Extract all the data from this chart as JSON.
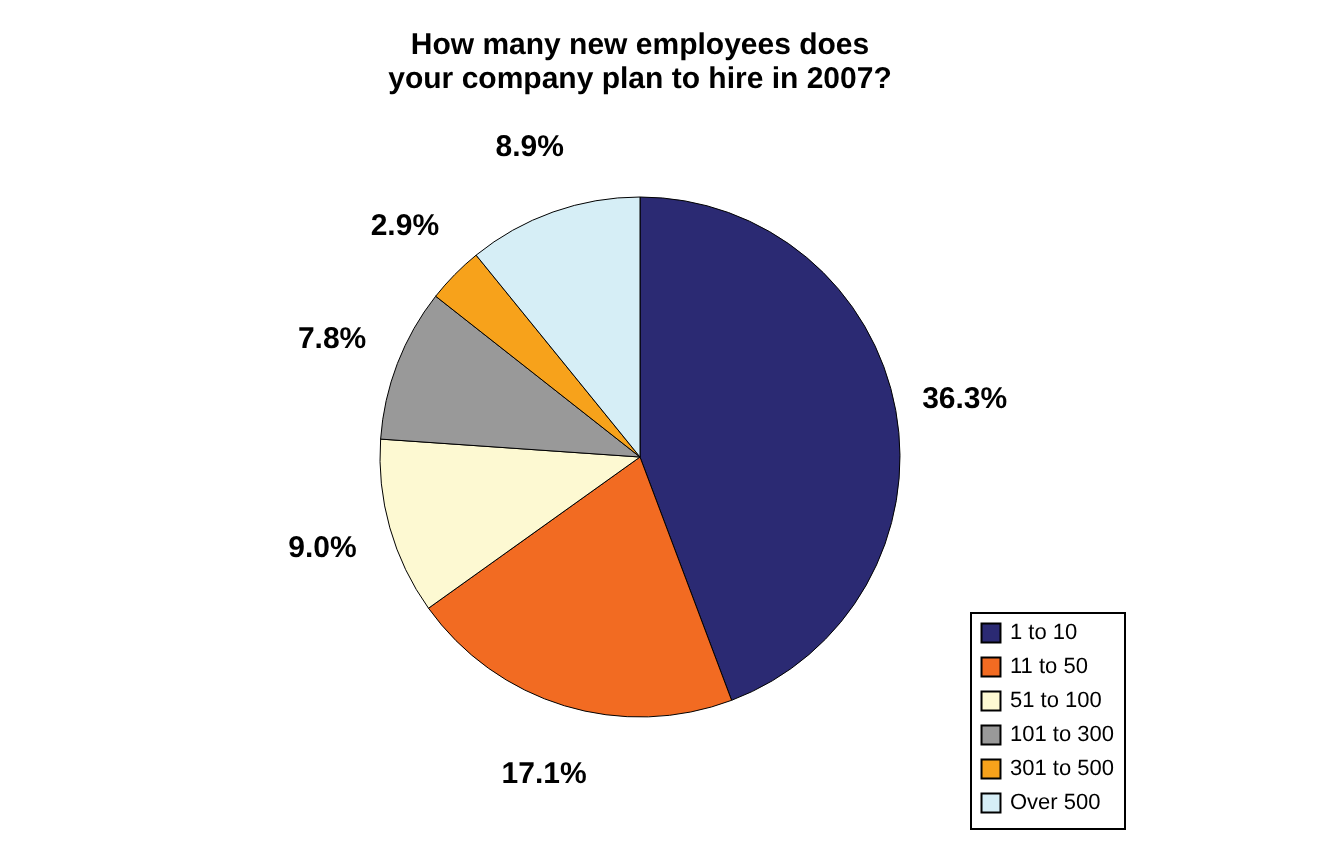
{
  "chart_data": {
    "type": "pie",
    "title": "How many new employees does\nyour company plan to hire in 2007?",
    "categories": [
      "1 to 10",
      "11 to 50",
      "51 to 100",
      "101 to 300",
      "301 to 500",
      "Over 500"
    ],
    "values": [
      36.3,
      17.1,
      9.0,
      7.8,
      2.9,
      8.9
    ],
    "value_labels": [
      "36.3%",
      "17.1%",
      "9.0%",
      "7.8%",
      "2.9%",
      "8.9%"
    ],
    "colors": [
      "#2b2a73",
      "#f26b22",
      "#fdf9d2",
      "#999999",
      "#f7a21b",
      "#d6eef6"
    ],
    "legend": "right"
  }
}
